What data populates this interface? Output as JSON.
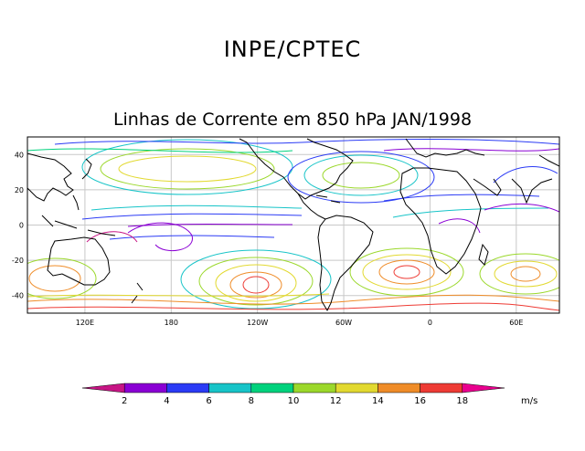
{
  "header": {
    "title": "INPE/CPTEC",
    "subtitle": "Linhas de Corrente em 850 hPa JAN/1998"
  },
  "map": {
    "lat_ticks": [
      "40",
      "20",
      "0",
      "-20",
      "-40"
    ],
    "lon_ticks": [
      "120E",
      "180",
      "120W",
      "60W",
      "0",
      "60E"
    ],
    "lat_values": [
      40,
      20,
      0,
      -20,
      -40
    ],
    "lon_values": [
      120,
      180,
      240,
      300,
      360,
      420
    ],
    "lat_range": [
      -50,
      50
    ],
    "lon_range": [
      80,
      450
    ],
    "grid_color": "#c8c8c8",
    "coast_color": "#000000"
  },
  "colorbar": {
    "labels": [
      "2",
      "4",
      "6",
      "8",
      "10",
      "12",
      "14",
      "16",
      "18"
    ],
    "colors": [
      "#c71585",
      "#8a00d4",
      "#2b3bf5",
      "#17c4c8",
      "#00d27d",
      "#9bd82b",
      "#e2d930",
      "#ef8c28",
      "#ee3b34",
      "#e9008f"
    ],
    "units": "m/s"
  }
}
